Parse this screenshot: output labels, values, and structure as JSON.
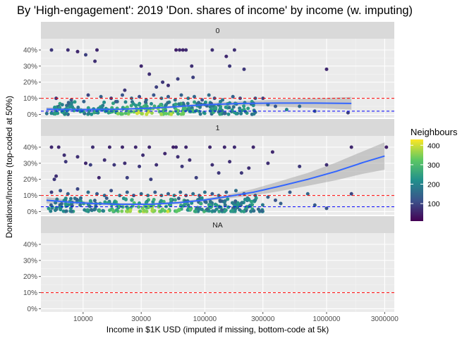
{
  "chart_data": {
    "type": "scatter",
    "title": "By 'High-engagement': 2019 'Don. shares of income' by income (w. imputing)",
    "xlabel": "Income in $1K USD (imputed if missing, bottom-code at 5k)",
    "ylabel": "Donations/Income (top-coded at 50%)",
    "x_scale": "log10",
    "x_ticks": [
      10000,
      30000,
      100000,
      300000,
      1000000,
      3000000
    ],
    "x_tick_labels": [
      "10000",
      "30000",
      "100000",
      "300000",
      "1000000",
      "3000000"
    ],
    "xlim": [
      4500,
      3600000
    ],
    "y_ticks": [
      0,
      0.1,
      0.2,
      0.3,
      0.4
    ],
    "y_tick_labels": [
      "0%",
      "10%",
      "20%",
      "30%",
      "40%"
    ],
    "ylim": [
      -0.02,
      0.47
    ],
    "grid": true,
    "legend": {
      "title": "Neighbours",
      "type": "colorbar",
      "placement": "right",
      "ticks": [
        100,
        200,
        300,
        400
      ],
      "tick_labels": [
        "100",
        "200",
        "300",
        "400"
      ],
      "range": [
        10,
        430
      ],
      "palette": [
        "#440154",
        "#3b528b",
        "#21908c",
        "#5dc863",
        "#fde725"
      ]
    },
    "reference_lines": [
      {
        "y": 0.1,
        "color": "#ff0000",
        "style": "dashed"
      }
    ],
    "panels": [
      {
        "label": "0",
        "median_line": 0.02,
        "smooth": {
          "x": [
            5000,
            10000,
            20000,
            40000,
            70000,
            100000,
            200000,
            400000,
            800000,
            1600000
          ],
          "y": [
            0.032,
            0.03,
            0.032,
            0.04,
            0.052,
            0.06,
            0.068,
            0.07,
            0.07,
            0.068
          ],
          "ci_lo": [
            0.02,
            0.022,
            0.026,
            0.034,
            0.044,
            0.05,
            0.054,
            0.048,
            0.04,
            0.03
          ],
          "ci_hi": [
            0.044,
            0.038,
            0.038,
            0.046,
            0.06,
            0.07,
            0.082,
            0.092,
            0.1,
            0.108
          ]
        },
        "points_high": [
          [
            5500,
            0.4,
            80
          ],
          [
            7500,
            0.4,
            70
          ],
          [
            9000,
            0.39,
            60
          ],
          [
            10500,
            0.37,
            90
          ],
          [
            12500,
            0.33,
            70
          ],
          [
            13000,
            0.4,
            60
          ],
          [
            30000,
            0.3,
            60
          ],
          [
            35000,
            0.25,
            70
          ],
          [
            45000,
            0.2,
            80
          ],
          [
            60000,
            0.22,
            90
          ],
          [
            58000,
            0.4,
            50
          ],
          [
            62000,
            0.4,
            60
          ],
          [
            66000,
            0.4,
            55
          ],
          [
            70000,
            0.4,
            65
          ],
          [
            78000,
            0.3,
            70
          ],
          [
            80000,
            0.23,
            90
          ],
          [
            115000,
            0.4,
            70
          ],
          [
            150000,
            0.36,
            60
          ],
          [
            160000,
            0.3,
            80
          ],
          [
            175000,
            0.4,
            70
          ],
          [
            210000,
            0.28,
            80
          ],
          [
            1000000,
            0.28,
            60
          ],
          [
            50000,
            0.18,
            70
          ],
          [
            40000,
            0.17,
            90
          ],
          [
            22000,
            0.15,
            80
          ]
        ],
        "points_band": [
          [
            6000,
            0.1,
            80
          ],
          [
            8000,
            0.09,
            130
          ],
          [
            11000,
            0.12,
            100
          ],
          [
            14000,
            0.11,
            140
          ],
          [
            17000,
            0.1,
            90
          ],
          [
            21000,
            0.12,
            120
          ],
          [
            25000,
            0.1,
            160
          ],
          [
            29000,
            0.11,
            110
          ],
          [
            33000,
            0.09,
            150
          ],
          [
            38000,
            0.12,
            120
          ],
          [
            44000,
            0.1,
            170
          ],
          [
            50000,
            0.11,
            130
          ],
          [
            57000,
            0.09,
            160
          ],
          [
            64000,
            0.12,
            140
          ],
          [
            73000,
            0.1,
            180
          ],
          [
            82000,
            0.11,
            150
          ],
          [
            95000,
            0.09,
            120
          ],
          [
            108000,
            0.12,
            160
          ],
          [
            120000,
            0.1,
            130
          ],
          [
            140000,
            0.09,
            170
          ],
          [
            170000,
            0.11,
            140
          ],
          [
            195000,
            0.1,
            120
          ],
          [
            260000,
            0.1,
            130
          ],
          [
            300000,
            0.1,
            100
          ],
          [
            330000,
            0.06,
            150
          ],
          [
            380000,
            0.05,
            120
          ],
          [
            470000,
            0.03,
            200
          ],
          [
            600000,
            0.05,
            150
          ],
          [
            800000,
            0.02,
            120
          ],
          [
            1500000,
            0.01,
            90
          ]
        ],
        "cluster": {
          "x_range": [
            5000,
            260000
          ],
          "y_range": [
            0.0,
            0.08
          ],
          "count": 260,
          "seed": 11
        }
      },
      {
        "label": "1",
        "median_line": 0.03,
        "smooth": {
          "x": [
            5000,
            8000,
            12000,
            20000,
            35000,
            60000,
            100000,
            150000,
            250000,
            400000,
            700000,
            1200000,
            2000000,
            3000000
          ],
          "y": [
            0.07,
            0.058,
            0.05,
            0.045,
            0.045,
            0.055,
            0.072,
            0.092,
            0.12,
            0.155,
            0.2,
            0.25,
            0.305,
            0.345
          ],
          "ci_lo": [
            0.05,
            0.045,
            0.04,
            0.037,
            0.038,
            0.047,
            0.063,
            0.08,
            0.1,
            0.125,
            0.16,
            0.195,
            0.235,
            0.26
          ],
          "ci_hi": [
            0.09,
            0.071,
            0.06,
            0.053,
            0.052,
            0.063,
            0.081,
            0.104,
            0.14,
            0.185,
            0.24,
            0.305,
            0.375,
            0.43
          ]
        },
        "points_high": [
          [
            5500,
            0.4,
            60
          ],
          [
            5800,
            0.2,
            80
          ],
          [
            6000,
            0.22,
            70
          ],
          [
            6300,
            0.4,
            60
          ],
          [
            7000,
            0.35,
            70
          ],
          [
            7200,
            0.31,
            80
          ],
          [
            9000,
            0.34,
            70
          ],
          [
            10500,
            0.3,
            60
          ],
          [
            11500,
            0.29,
            90
          ],
          [
            12000,
            0.4,
            70
          ],
          [
            13500,
            0.21,
            60
          ],
          [
            15000,
            0.32,
            70
          ],
          [
            16500,
            0.4,
            60
          ],
          [
            18000,
            0.29,
            80
          ],
          [
            21000,
            0.4,
            60
          ],
          [
            22000,
            0.3,
            70
          ],
          [
            23000,
            0.21,
            90
          ],
          [
            27000,
            0.4,
            60
          ],
          [
            29000,
            0.28,
            80
          ],
          [
            31000,
            0.35,
            70
          ],
          [
            35000,
            0.4,
            60
          ],
          [
            36000,
            0.2,
            90
          ],
          [
            40000,
            0.29,
            70
          ],
          [
            47000,
            0.36,
            60
          ],
          [
            55000,
            0.4,
            50
          ],
          [
            58000,
            0.4,
            60
          ],
          [
            60000,
            0.34,
            70
          ],
          [
            65000,
            0.28,
            80
          ],
          [
            70000,
            0.4,
            60
          ],
          [
            75000,
            0.32,
            70
          ],
          [
            85000,
            0.21,
            90
          ],
          [
            110000,
            0.4,
            60
          ],
          [
            115000,
            0.29,
            70
          ],
          [
            130000,
            0.24,
            80
          ],
          [
            145000,
            0.4,
            60
          ],
          [
            160000,
            0.31,
            70
          ],
          [
            175000,
            0.4,
            65
          ],
          [
            200000,
            0.24,
            80
          ],
          [
            230000,
            0.27,
            70
          ],
          [
            250000,
            0.4,
            60
          ],
          [
            330000,
            0.3,
            70
          ],
          [
            360000,
            0.37,
            60
          ],
          [
            600000,
            0.28,
            80
          ],
          [
            1000000,
            0.29,
            70
          ],
          [
            1600000,
            0.4,
            60
          ],
          [
            3100000,
            0.4,
            50
          ]
        ],
        "points_band": [
          [
            5500,
            0.12,
            90
          ],
          [
            6500,
            0.13,
            120
          ],
          [
            7500,
            0.11,
            140
          ],
          [
            9000,
            0.14,
            100
          ],
          [
            11000,
            0.12,
            160
          ],
          [
            13000,
            0.11,
            130
          ],
          [
            15000,
            0.1,
            150
          ],
          [
            17000,
            0.13,
            110
          ],
          [
            20000,
            0.1,
            170
          ],
          [
            23000,
            0.12,
            140
          ],
          [
            26000,
            0.1,
            120
          ],
          [
            30000,
            0.11,
            150
          ],
          [
            34000,
            0.1,
            170
          ],
          [
            39000,
            0.12,
            130
          ],
          [
            44000,
            0.1,
            160
          ],
          [
            50000,
            0.11,
            140
          ],
          [
            56000,
            0.1,
            180
          ],
          [
            63000,
            0.12,
            150
          ],
          [
            70000,
            0.1,
            120
          ],
          [
            80000,
            0.11,
            160
          ],
          [
            90000,
            0.1,
            140
          ],
          [
            100000,
            0.12,
            170
          ],
          [
            115000,
            0.11,
            130
          ],
          [
            130000,
            0.1,
            150
          ],
          [
            150000,
            0.12,
            140
          ],
          [
            180000,
            0.13,
            160
          ],
          [
            210000,
            0.11,
            130
          ],
          [
            260000,
            0.1,
            150
          ],
          [
            330000,
            0.09,
            140
          ],
          [
            500000,
            0.12,
            130
          ],
          [
            380000,
            0.07,
            120
          ],
          [
            420000,
            0.05,
            140
          ],
          [
            700000,
            0.11,
            150
          ],
          [
            800000,
            0.04,
            130
          ],
          [
            1000000,
            0.02,
            120
          ],
          [
            1600000,
            0.11,
            100
          ]
        ],
        "cluster": {
          "x_range": [
            5000,
            300000
          ],
          "y_range": [
            0.0,
            0.085
          ],
          "count": 300,
          "seed": 23
        }
      },
      {
        "label": "NA",
        "median_line": null,
        "smooth": null,
        "points_high": [],
        "points_band": [],
        "cluster": null
      }
    ]
  }
}
